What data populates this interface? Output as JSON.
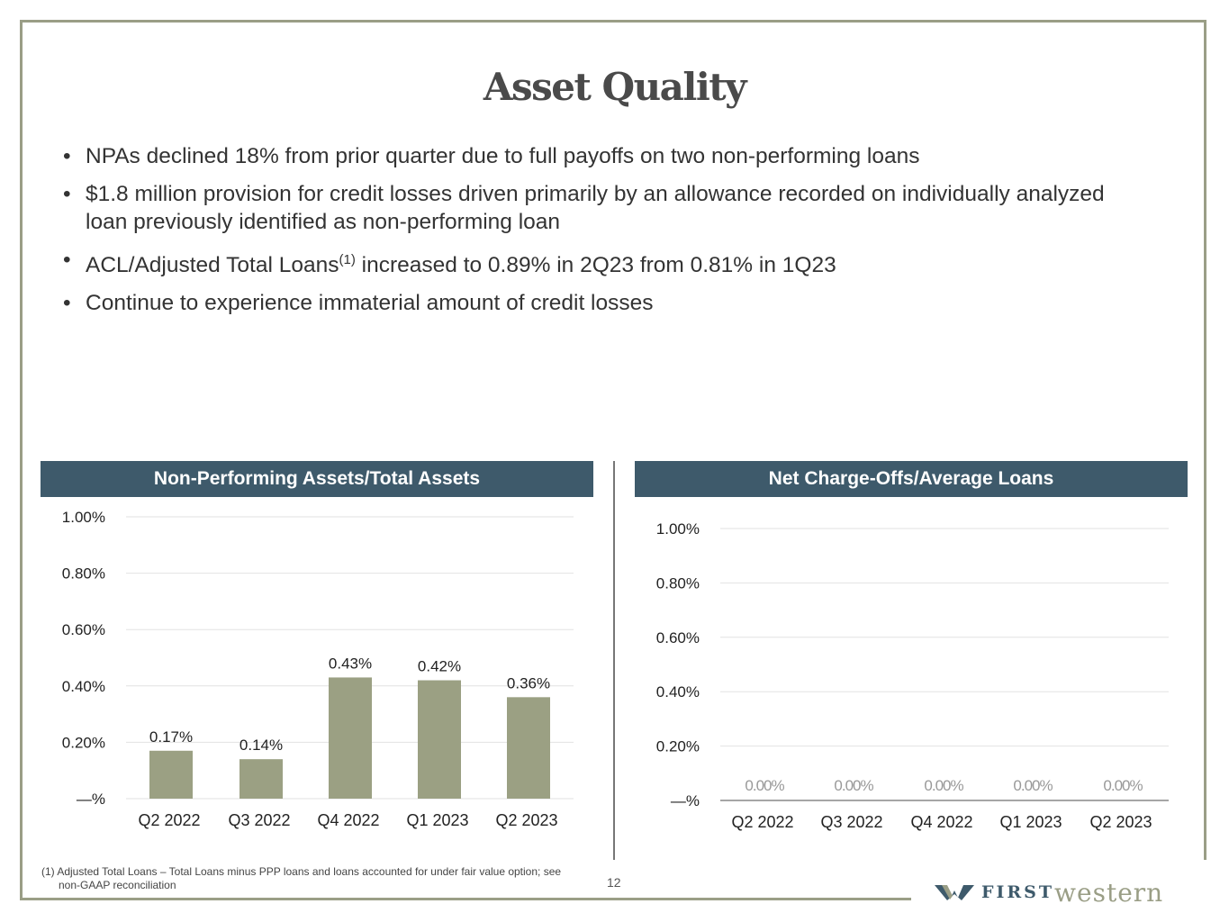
{
  "title": "Asset Quality",
  "bullets": [
    "NPAs declined 18% from prior quarter due to full payoffs on two non-performing loans",
    "$1.8 million provision for credit losses driven primarily by an allowance recorded on individually analyzed loan previously identified as non-performing loan",
    {
      "pre": "ACL/Adjusted Total Loans",
      "sup": "(1)",
      "post": " increased to 0.89% in 2Q23 from 0.81% in 1Q23"
    },
    "Continue to experience immaterial amount of credit losses"
  ],
  "chart_data": [
    {
      "type": "bar",
      "title": "Non-Performing Assets/Total Assets",
      "categories": [
        "Q2 2022",
        "Q3 2022",
        "Q4 2022",
        "Q1 2023",
        "Q2 2023"
      ],
      "values": [
        0.17,
        0.14,
        0.43,
        0.42,
        0.36
      ],
      "data_labels": [
        "0.17%",
        "0.14%",
        "0.43%",
        "0.42%",
        "0.36%"
      ],
      "yticks": [
        "—%",
        "0.20%",
        "0.40%",
        "0.60%",
        "0.80%",
        "1.00%"
      ],
      "ylim": [
        0,
        1.0
      ],
      "grid": true,
      "color": "#9ba083"
    },
    {
      "type": "bar",
      "title": "Net Charge-Offs/Average Loans",
      "categories": [
        "Q2 2022",
        "Q3 2022",
        "Q4 2022",
        "Q1 2023",
        "Q2 2023"
      ],
      "values": [
        0,
        0,
        0,
        0,
        0
      ],
      "data_labels": [
        "0.00%",
        "0.00%",
        "0.00%",
        "0.00%",
        "0.00%"
      ],
      "yticks": [
        "—%",
        "0.20%",
        "0.40%",
        "0.60%",
        "0.80%",
        "1.00%"
      ],
      "ylim": [
        0,
        1.0
      ],
      "grid": true,
      "color": "#9ba083"
    }
  ],
  "footnote": {
    "line1": "(1)  Adjusted Total Loans –  Total Loans minus PPP loans and loans accounted for under fair value option; see",
    "line2": "non-GAAP reconciliation"
  },
  "page_number": "12",
  "logo": {
    "first": "FIRST",
    "western": "western"
  },
  "colors": {
    "header": "#3e5a6b",
    "bar": "#9ba083",
    "frame": "#9a9e86"
  }
}
